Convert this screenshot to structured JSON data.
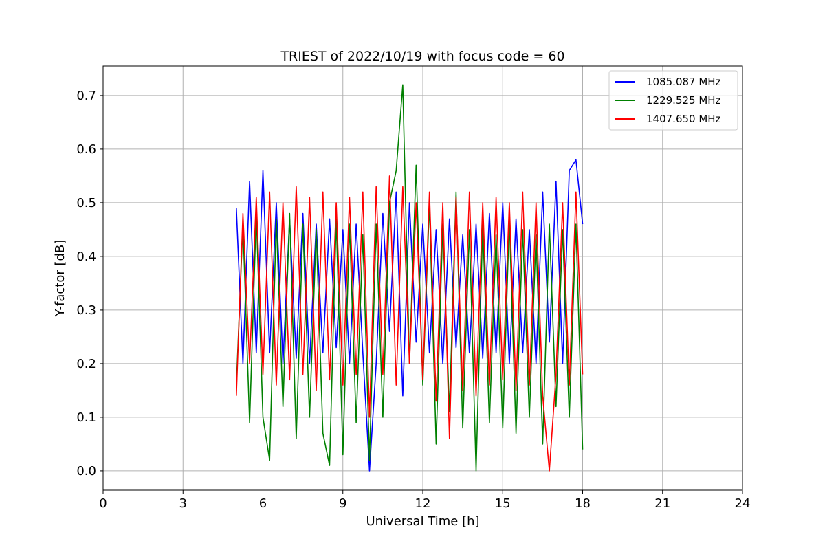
{
  "chart_data": {
    "type": "line",
    "title": "TRIEST of 2022/10/19 with focus code = 60",
    "xlabel": "Universal Time [h]",
    "ylabel": "Y-factor [dB]",
    "xlim": [
      0,
      24
    ],
    "ylim": [
      -0.036,
      0.755
    ],
    "xticks": [
      0,
      3,
      6,
      9,
      12,
      15,
      18,
      21,
      24
    ],
    "xtick_labels": [
      "0",
      "3",
      "6",
      "9",
      "12",
      "15",
      "18",
      "21",
      "24"
    ],
    "yticks": [
      0.0,
      0.1,
      0.2,
      0.3,
      0.4,
      0.5,
      0.6,
      0.7
    ],
    "ytick_labels": [
      "0.0",
      "0.1",
      "0.2",
      "0.3",
      "0.4",
      "0.5",
      "0.6",
      "0.7"
    ],
    "grid": true,
    "legend_position": "top-right",
    "series": [
      {
        "name": "1085.087 MHz",
        "color": "#0000ff",
        "x": [
          5.0,
          5.25,
          5.5,
          5.75,
          6.0,
          6.25,
          6.5,
          6.75,
          7.0,
          7.25,
          7.5,
          7.75,
          8.0,
          8.25,
          8.5,
          8.75,
          9.0,
          9.25,
          9.5,
          9.75,
          10.0,
          10.25,
          10.5,
          10.75,
          11.0,
          11.25,
          11.5,
          11.75,
          12.0,
          12.25,
          12.5,
          12.75,
          13.0,
          13.25,
          13.5,
          13.75,
          14.0,
          14.25,
          14.5,
          14.75,
          15.0,
          15.25,
          15.5,
          15.75,
          16.0,
          16.25,
          16.5,
          16.75,
          17.0,
          17.25,
          17.5,
          17.75,
          18.0
        ],
        "values": [
          0.49,
          0.2,
          0.54,
          0.22,
          0.56,
          0.22,
          0.5,
          0.2,
          0.47,
          0.21,
          0.48,
          0.2,
          0.46,
          0.22,
          0.47,
          0.23,
          0.45,
          0.2,
          0.46,
          0.22,
          0.0,
          0.2,
          0.48,
          0.26,
          0.52,
          0.14,
          0.5,
          0.24,
          0.46,
          0.22,
          0.45,
          0.2,
          0.47,
          0.23,
          0.44,
          0.22,
          0.46,
          0.21,
          0.48,
          0.22,
          0.5,
          0.2,
          0.47,
          0.22,
          0.45,
          0.2,
          0.52,
          0.24,
          0.54,
          0.2,
          0.56,
          0.58,
          0.46
        ]
      },
      {
        "name": "1229.525 MHz",
        "color": "#008000",
        "x": [
          5.0,
          5.25,
          5.5,
          5.75,
          6.0,
          6.25,
          6.5,
          6.75,
          7.0,
          7.25,
          7.5,
          7.75,
          8.0,
          8.25,
          8.5,
          8.75,
          9.0,
          9.25,
          9.5,
          9.75,
          10.0,
          10.25,
          10.5,
          10.75,
          11.0,
          11.25,
          11.5,
          11.75,
          12.0,
          12.25,
          12.5,
          12.75,
          13.0,
          13.25,
          13.5,
          13.75,
          14.0,
          14.25,
          14.5,
          14.75,
          15.0,
          15.25,
          15.5,
          15.75,
          16.0,
          16.25,
          16.5,
          16.75,
          17.0,
          17.25,
          17.5,
          17.75,
          18.0
        ],
        "values": [
          0.16,
          0.46,
          0.09,
          0.48,
          0.1,
          0.02,
          0.47,
          0.12,
          0.48,
          0.06,
          0.46,
          0.1,
          0.45,
          0.07,
          0.01,
          0.47,
          0.03,
          0.46,
          0.09,
          0.44,
          0.02,
          0.46,
          0.1,
          0.5,
          0.56,
          0.72,
          0.2,
          0.57,
          0.16,
          0.5,
          0.05,
          0.46,
          0.11,
          0.52,
          0.08,
          0.45,
          0.0,
          0.46,
          0.09,
          0.44,
          0.08,
          0.47,
          0.07,
          0.45,
          0.1,
          0.44,
          0.05,
          0.46,
          0.12,
          0.45,
          0.1,
          0.46,
          0.04
        ]
      },
      {
        "name": "1407.650 MHz",
        "color": "#ff0000",
        "x": [
          5.0,
          5.25,
          5.5,
          5.75,
          6.0,
          6.25,
          6.5,
          6.75,
          7.0,
          7.25,
          7.5,
          7.75,
          8.0,
          8.25,
          8.5,
          8.75,
          9.0,
          9.25,
          9.5,
          9.75,
          10.0,
          10.25,
          10.5,
          10.75,
          11.0,
          11.25,
          11.5,
          11.75,
          12.0,
          12.25,
          12.5,
          12.75,
          13.0,
          13.25,
          13.5,
          13.75,
          14.0,
          14.25,
          14.5,
          14.75,
          15.0,
          15.25,
          15.5,
          15.75,
          16.0,
          16.25,
          16.5,
          16.75,
          17.0,
          17.25,
          17.5,
          17.75,
          18.0
        ],
        "values": [
          0.14,
          0.48,
          0.2,
          0.51,
          0.18,
          0.52,
          0.16,
          0.5,
          0.17,
          0.53,
          0.18,
          0.51,
          0.15,
          0.52,
          0.17,
          0.5,
          0.16,
          0.51,
          0.18,
          0.52,
          0.1,
          0.53,
          0.18,
          0.55,
          0.16,
          0.53,
          0.2,
          0.5,
          0.17,
          0.52,
          0.13,
          0.5,
          0.06,
          0.51,
          0.15,
          0.52,
          0.14,
          0.5,
          0.16,
          0.51,
          0.17,
          0.5,
          0.15,
          0.52,
          0.16,
          0.5,
          0.14,
          0.0,
          0.18,
          0.5,
          0.16,
          0.52,
          0.18
        ]
      }
    ]
  }
}
